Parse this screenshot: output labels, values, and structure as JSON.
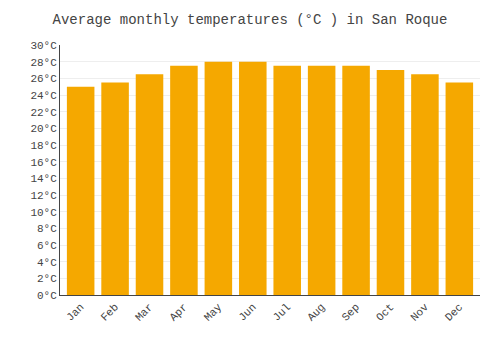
{
  "chart_data": {
    "type": "bar",
    "title": "Average monthly temperatures (°C ) in San Roque",
    "categories": [
      "Jan",
      "Feb",
      "Mar",
      "Apr",
      "May",
      "Jun",
      "Jul",
      "Aug",
      "Sep",
      "Oct",
      "Nov",
      "Dec"
    ],
    "values": [
      25.0,
      25.5,
      26.5,
      27.5,
      28.0,
      28.0,
      27.5,
      27.5,
      27.5,
      27.0,
      26.5,
      25.5
    ],
    "color": "#F5A800",
    "ylim": [
      0,
      30
    ],
    "yticks": [
      {
        "value": 0,
        "label": "0°C"
      },
      {
        "value": 2,
        "label": "2°C"
      },
      {
        "value": 4,
        "label": "4°C"
      },
      {
        "value": 6,
        "label": "6°C"
      },
      {
        "value": 8,
        "label": "8°C"
      },
      {
        "value": 10,
        "label": "10°C"
      },
      {
        "value": 12,
        "label": "12°C"
      },
      {
        "value": 14,
        "label": "14°C"
      },
      {
        "value": 16,
        "label": "16°C"
      },
      {
        "value": 18,
        "label": "18°C"
      },
      {
        "value": 20,
        "label": "20°C"
      },
      {
        "value": 22,
        "label": "22°C"
      },
      {
        "value": 24,
        "label": "24°C"
      },
      {
        "value": 26,
        "label": "26°C"
      },
      {
        "value": 28,
        "label": "28°C"
      },
      {
        "value": 30,
        "label": "30°C"
      }
    ],
    "grid": true
  }
}
